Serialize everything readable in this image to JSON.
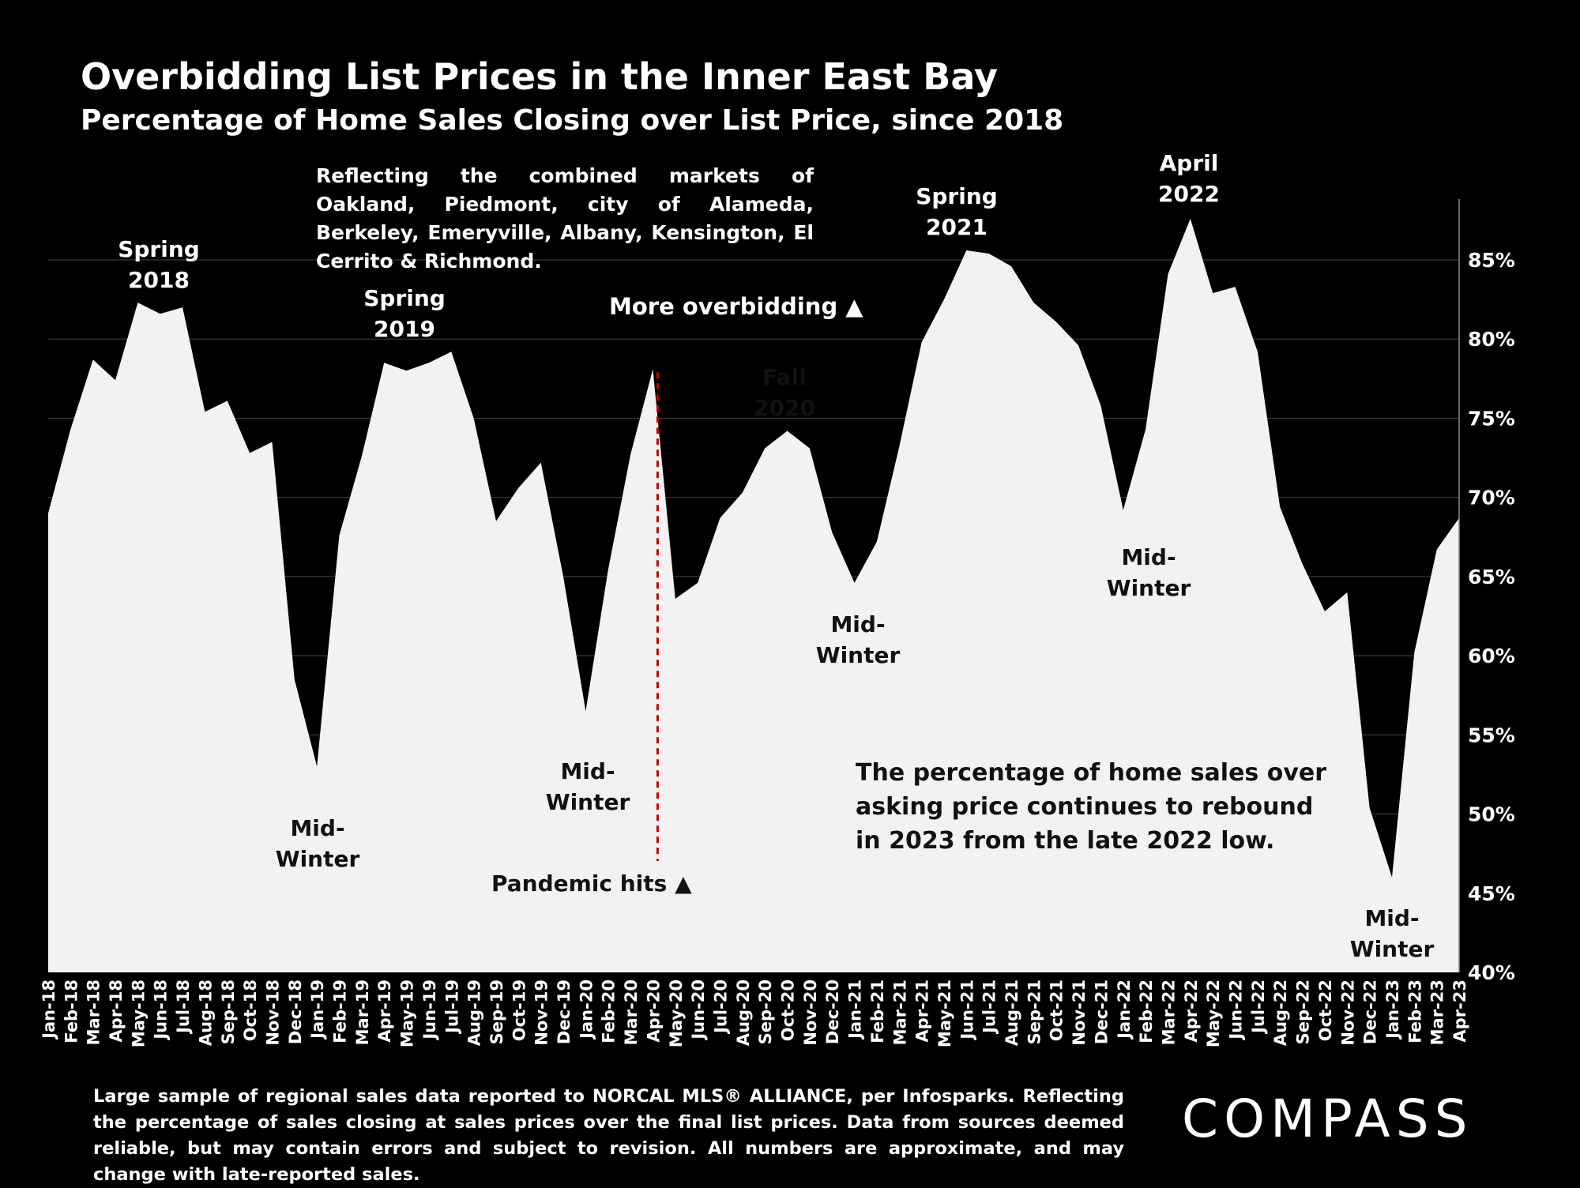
{
  "title": "Overbidding List Prices in the Inner East Bay",
  "subtitle": "Percentage of Home Sales Closing over List Price, since 2018",
  "note": "Reflecting the combined markets of Oakland, Piedmont, city of Alameda, Berkeley, Emeryville, Albany, Kensington, El Cerrito & Richmond.",
  "footnote": "Large sample of regional sales data reported to NORCAL MLS® ALLIANCE, per Infosparks. Reflecting the percentage of sales closing at sales prices over the final list prices. Data from sources deemed reliable, but may contain errors and subject to revision. All numbers are approximate, and may change with late-reported sales.",
  "logo": "COMPASS",
  "colors": {
    "background": "#000000",
    "area": "#f2f2f2",
    "text_dark": "#111111",
    "marker": "#c00000",
    "grid": "#444444"
  },
  "chart_data": {
    "type": "area",
    "x": [
      "Jan-18",
      "Feb-18",
      "Mar-18",
      "Apr-18",
      "May-18",
      "Jun-18",
      "Jul-18",
      "Aug-18",
      "Sep-18",
      "Oct-18",
      "Nov-18",
      "Dec-18",
      "Jan-19",
      "Feb-19",
      "Mar-19",
      "Apr-19",
      "May-19",
      "Jun-19",
      "Jul-19",
      "Aug-19",
      "Sep-19",
      "Oct-19",
      "Nov-19",
      "Dec-19",
      "Jan-20",
      "Feb-20",
      "Mar-20",
      "Apr-20",
      "May-20",
      "Jun-20",
      "Jul-20",
      "Aug-20",
      "Sep-20",
      "Oct-20",
      "Nov-20",
      "Dec-20",
      "Jan-21",
      "Feb-21",
      "Mar-21",
      "Apr-21",
      "May-21",
      "Jun-21",
      "Jul-21",
      "Aug-21",
      "Sep-21",
      "Oct-21",
      "Nov-21",
      "Dec-21",
      "Jan-22",
      "Feb-22",
      "Mar-22",
      "Apr-22",
      "May-22",
      "Jun-22",
      "Jul-22",
      "Aug-22",
      "Sep-22",
      "Oct-22",
      "Nov-22",
      "Dec-22",
      "Jan-23",
      "Feb-23",
      "Mar-23",
      "Apr-23"
    ],
    "series": [
      {
        "values": [
          69,
          74.3,
          78.7,
          77.4,
          82.3,
          81.6,
          82,
          75.4,
          76.1,
          72.8,
          73.5,
          58.5,
          53,
          67.6,
          72.6,
          78.5,
          78,
          78.5,
          79.2,
          75,
          68.5,
          70.6,
          72.2,
          65,
          56.5,
          65.4,
          72.7,
          78.1,
          63.6,
          64.6,
          68.7,
          70.3,
          73.1,
          74.2,
          73.1,
          67.8,
          64.6,
          67.2,
          73.2,
          79.8,
          82.5,
          85.6,
          85.4,
          84.6,
          82.3,
          81.1,
          79.6,
          75.8,
          69.2,
          74.3,
          84.1,
          87.6,
          82.9,
          83.3,
          79.2,
          69.4,
          65.8,
          62.8,
          64,
          50.4,
          46,
          60.2,
          66.7,
          68.7
        ]
      }
    ],
    "ylim": [
      40,
      90
    ],
    "y_ticks": [
      "40%",
      "45%",
      "50%",
      "55%",
      "60%",
      "65%",
      "70%",
      "75%",
      "80%",
      "85%"
    ],
    "y_axis_position": "right",
    "grid": true,
    "annotations": {
      "spring2018": "Spring 2018",
      "spring2019": "Spring 2019",
      "spring2021": "Spring 2021",
      "april2022": "April 2022",
      "fall2020": "Fall 2020",
      "midwinter": "Mid- Winter",
      "more_overbidding": "More overbidding ▲",
      "pandemic": "Pandemic hits ▲",
      "rebound": "The percentage of home sales over asking price continues to rebound in 2023 from the late 2022 low."
    }
  }
}
